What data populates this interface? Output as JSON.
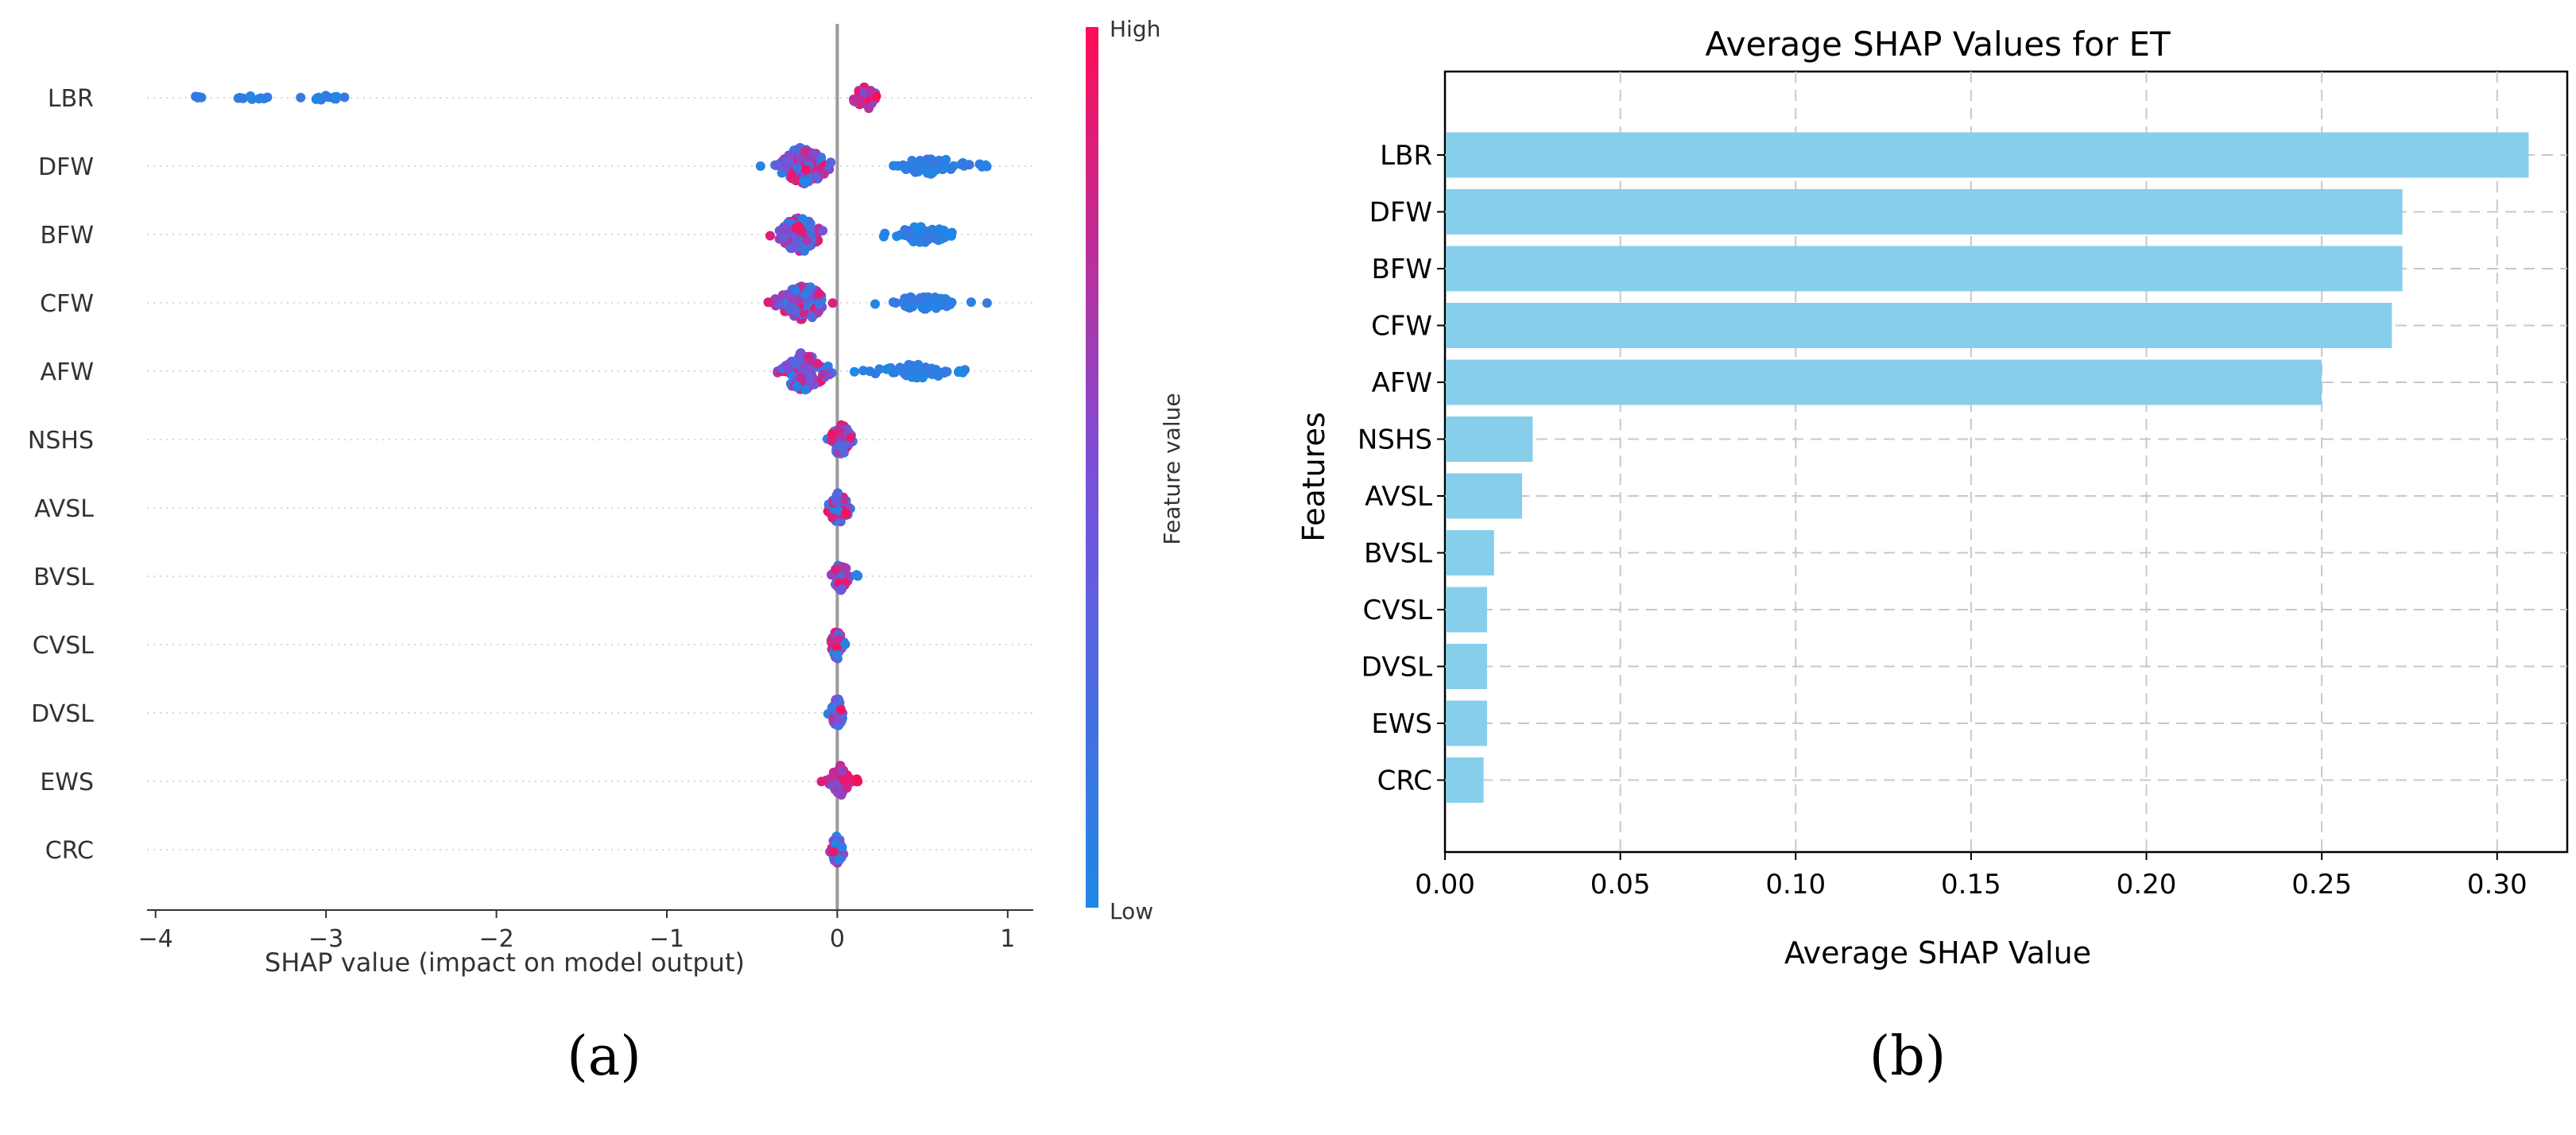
{
  "panel_labels": {
    "a": "(a)",
    "b": "(b)"
  },
  "colors": {
    "low": "#1e88e5",
    "high": "#ff0d57",
    "bar": "#87ceeb"
  },
  "chart_data": [
    {
      "type": "scatter",
      "subtype": "shap-beeswarm",
      "title": "",
      "xlabel": "SHAP value (impact on model output)",
      "ylabel": "",
      "xlim": [
        -4.05,
        1.15
      ],
      "xticks": [
        -4,
        -3,
        -2,
        -1,
        0,
        1
      ],
      "xtick_labels": [
        "−4",
        "−3",
        "−2",
        "−1",
        "0",
        "1"
      ],
      "colorbar": {
        "label": "Feature value",
        "high": "High",
        "low": "Low"
      },
      "features": [
        "LBR",
        "DFW",
        "BFW",
        "CFW",
        "AFW",
        "NSHS",
        "AVSL",
        "BVSL",
        "CVSL",
        "DVSL",
        "EWS",
        "CRC"
      ],
      "distributions": [
        {
          "feature": "LBR",
          "clusters": [
            {
              "center": 0.17,
              "spread": 0.06,
              "width": 14,
              "count": 50,
              "tone": "mixed-high"
            },
            {
              "center": -3.0,
              "spread": 0.12,
              "width": 3,
              "count": 12,
              "tone": "low"
            },
            {
              "center": -3.45,
              "spread": 0.1,
              "width": 3,
              "count": 10,
              "tone": "low"
            },
            {
              "center": -3.75,
              "spread": 0.04,
              "width": 2,
              "count": 4,
              "tone": "low"
            }
          ]
        },
        {
          "feature": "DFW",
          "clusters": [
            {
              "center": -0.2,
              "spread": 0.12,
              "width": 24,
              "count": 110,
              "tone": "mixed"
            },
            {
              "center": 0.55,
              "spread": 0.18,
              "width": 10,
              "count": 55,
              "tone": "low"
            },
            {
              "center": 0.85,
              "spread": 0.04,
              "width": 3,
              "count": 3,
              "tone": "low"
            }
          ]
        },
        {
          "feature": "BFW",
          "clusters": [
            {
              "center": -0.22,
              "spread": 0.1,
              "width": 22,
              "count": 100,
              "tone": "mixed"
            },
            {
              "center": 0.5,
              "spread": 0.18,
              "width": 10,
              "count": 55,
              "tone": "low"
            }
          ]
        },
        {
          "feature": "CFW",
          "clusters": [
            {
              "center": -0.2,
              "spread": 0.12,
              "width": 22,
              "count": 105,
              "tone": "mixed"
            },
            {
              "center": 0.5,
              "spread": 0.2,
              "width": 8,
              "count": 50,
              "tone": "low"
            }
          ]
        },
        {
          "feature": "AFW",
          "clusters": [
            {
              "center": -0.2,
              "spread": 0.12,
              "width": 24,
              "count": 110,
              "tone": "mixed"
            },
            {
              "center": 0.45,
              "spread": 0.2,
              "width": 9,
              "count": 50,
              "tone": "low"
            },
            {
              "center": 0.75,
              "spread": 0.03,
              "width": 2,
              "count": 3,
              "tone": "low"
            }
          ]
        },
        {
          "feature": "NSHS",
          "clusters": [
            {
              "center": 0.02,
              "spread": 0.05,
              "width": 20,
              "count": 75,
              "tone": "mixed"
            }
          ]
        },
        {
          "feature": "AVSL",
          "clusters": [
            {
              "center": 0.01,
              "spread": 0.05,
              "width": 20,
              "count": 70,
              "tone": "mixed"
            }
          ]
        },
        {
          "feature": "BVSL",
          "clusters": [
            {
              "center": 0.02,
              "spread": 0.04,
              "width": 18,
              "count": 60,
              "tone": "mixed"
            },
            {
              "center": 0.11,
              "spread": 0.01,
              "width": 2,
              "count": 3,
              "tone": "low"
            }
          ]
        },
        {
          "feature": "CVSL",
          "clusters": [
            {
              "center": 0.0,
              "spread": 0.03,
              "width": 18,
              "count": 55,
              "tone": "mixed"
            }
          ]
        },
        {
          "feature": "DVSL",
          "clusters": [
            {
              "center": 0.0,
              "spread": 0.03,
              "width": 18,
              "count": 55,
              "tone": "mixed"
            }
          ]
        },
        {
          "feature": "EWS",
          "clusters": [
            {
              "center": 0.02,
              "spread": 0.05,
              "width": 20,
              "count": 65,
              "tone": "mixed-high"
            },
            {
              "center": 0.12,
              "spread": 0.02,
              "width": 3,
              "count": 5,
              "tone": "high"
            }
          ]
        },
        {
          "feature": "CRC",
          "clusters": [
            {
              "center": 0.0,
              "spread": 0.03,
              "width": 18,
              "count": 55,
              "tone": "mixed"
            }
          ]
        }
      ]
    },
    {
      "type": "bar",
      "orientation": "horizontal",
      "title": "Average SHAP Values for ET",
      "xlabel": "Average SHAP Value",
      "ylabel": "Features",
      "xlim": [
        0,
        0.32
      ],
      "xticks": [
        0.0,
        0.05,
        0.1,
        0.15,
        0.2,
        0.25,
        0.3
      ],
      "xtick_labels": [
        "0.00",
        "0.05",
        "0.10",
        "0.15",
        "0.20",
        "0.25",
        "0.30"
      ],
      "grid": true,
      "categories": [
        "LBR",
        "DFW",
        "BFW",
        "CFW",
        "AFW",
        "NSHS",
        "AVSL",
        "BVSL",
        "CVSL",
        "DVSL",
        "EWS",
        "CRC"
      ],
      "values": [
        0.309,
        0.273,
        0.273,
        0.27,
        0.25,
        0.025,
        0.022,
        0.014,
        0.012,
        0.012,
        0.012,
        0.011
      ]
    }
  ]
}
